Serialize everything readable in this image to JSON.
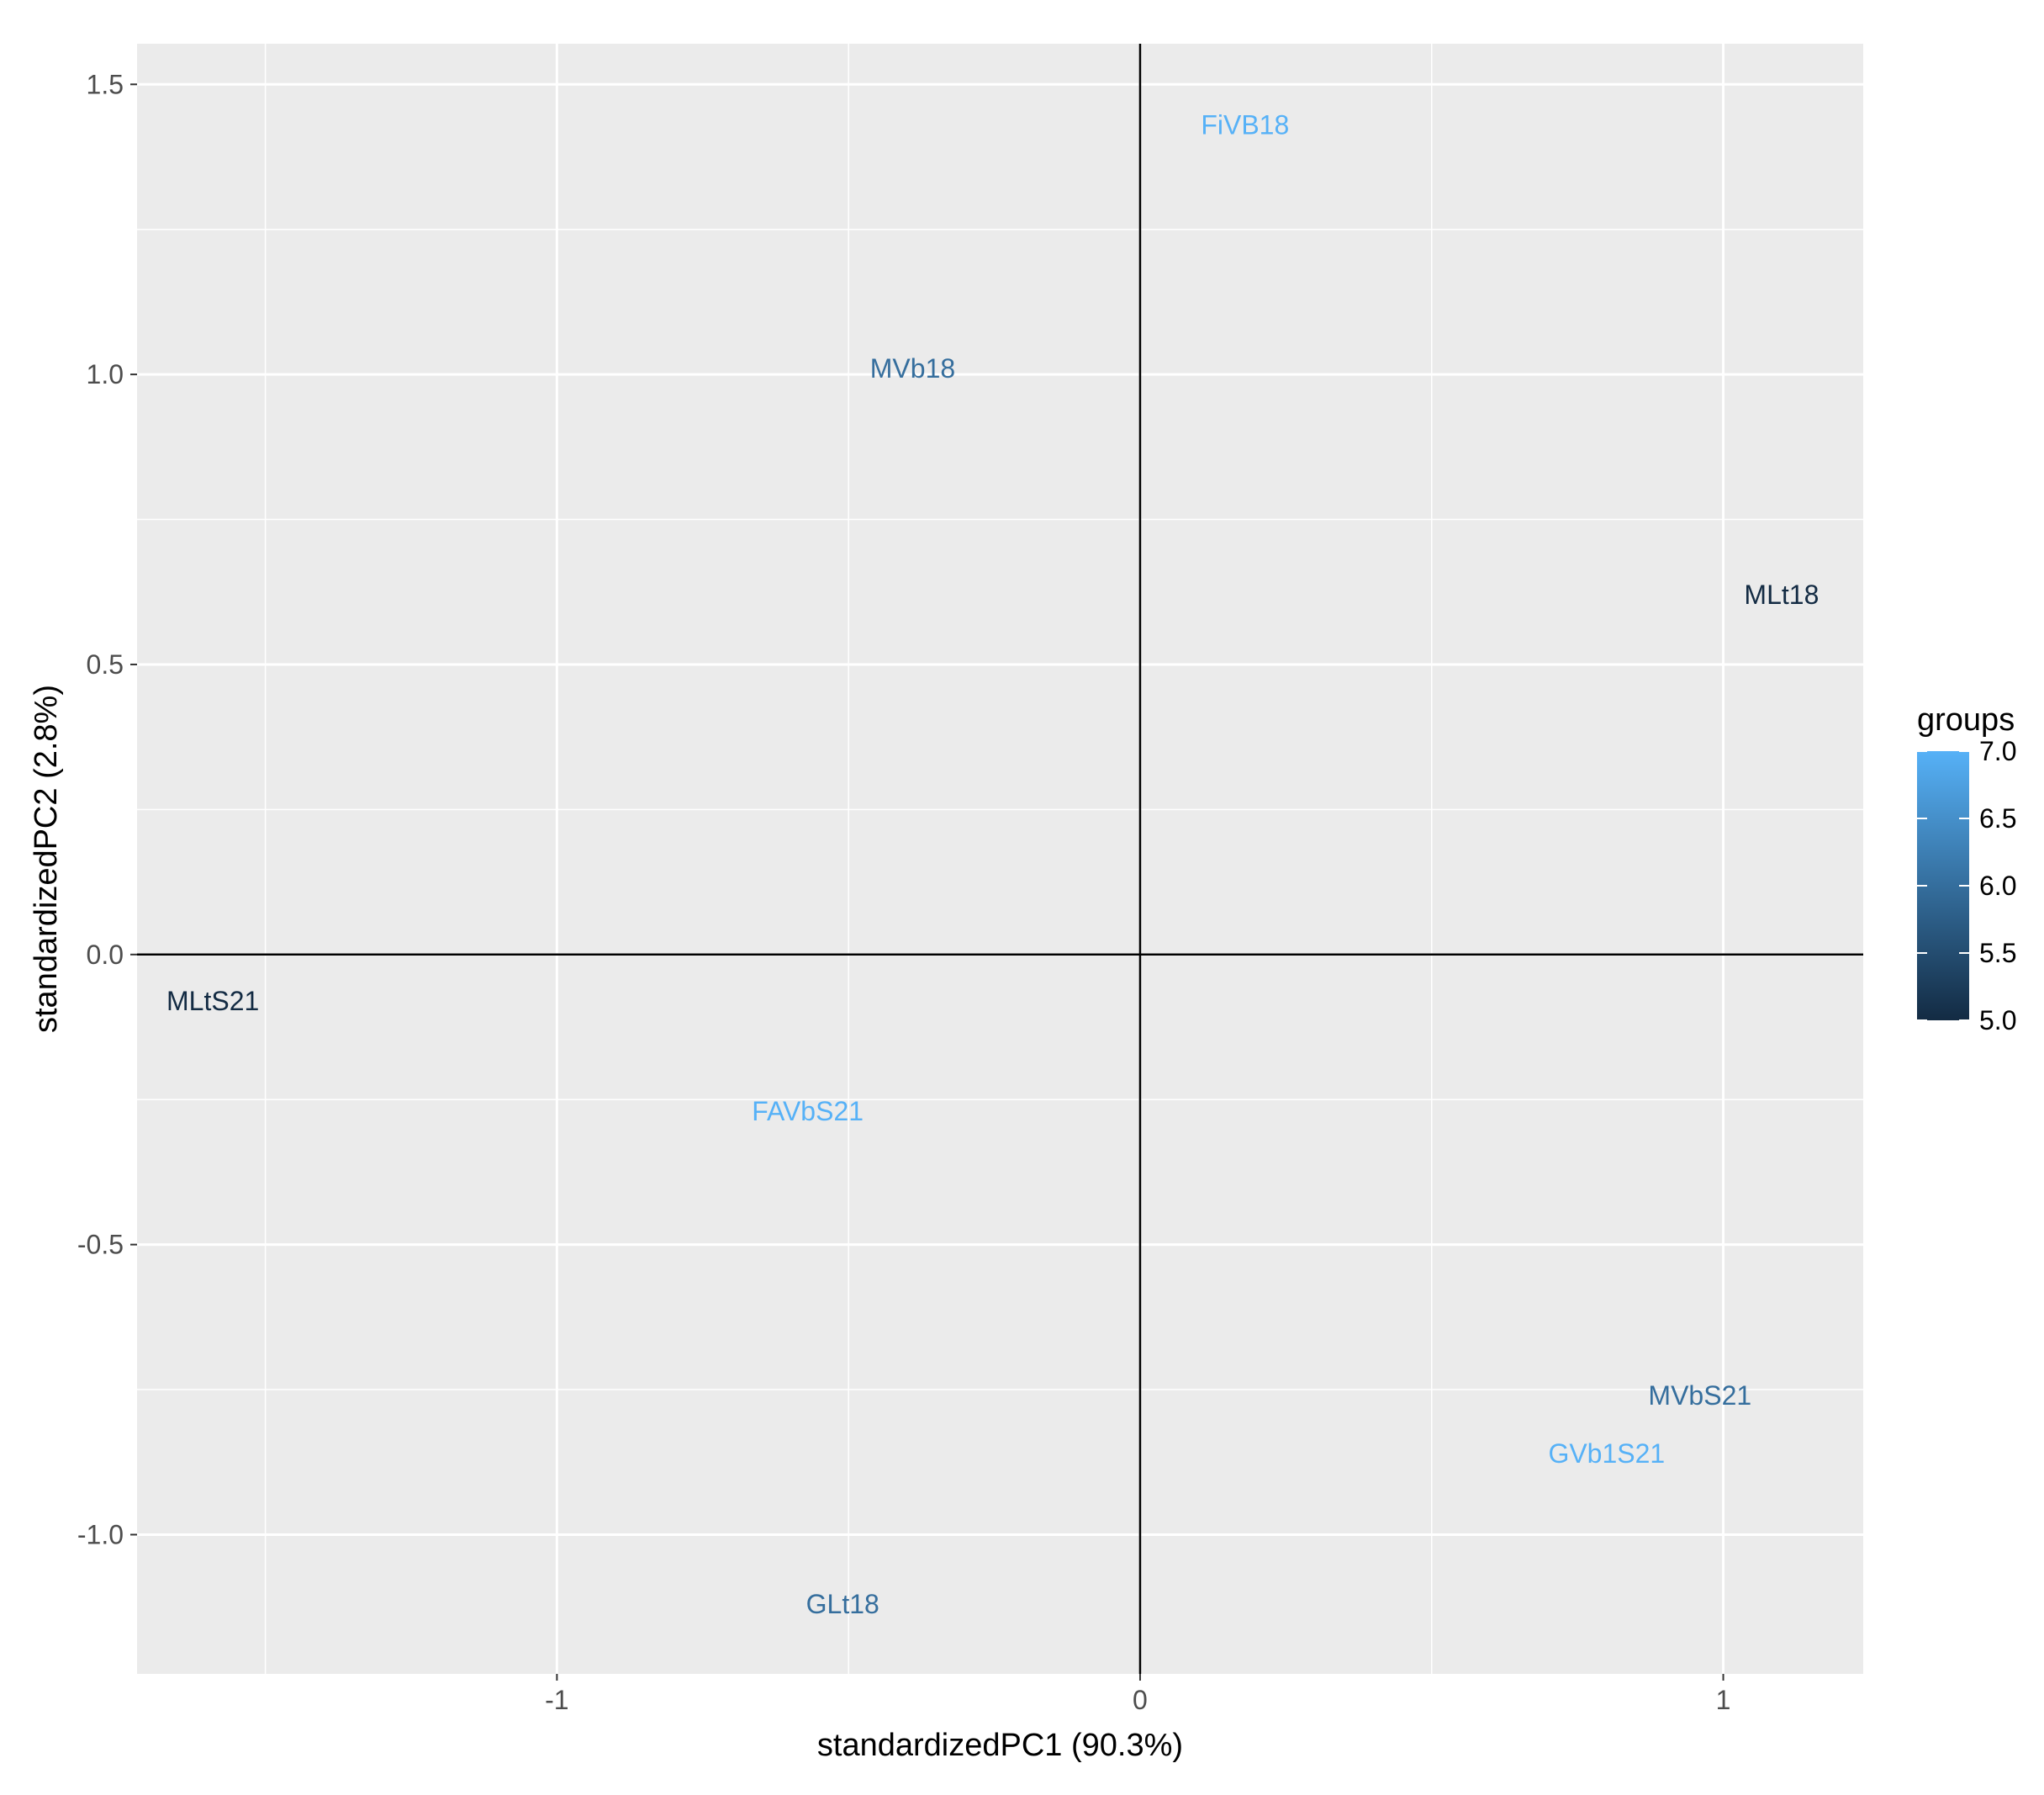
{
  "chart_data": {
    "type": "scatter",
    "title": "",
    "xlabel": "standardizedPC1 (90.3%)",
    "ylabel": "standardizedPC2 (2.8%)",
    "xlim": [
      -1.72,
      1.24
    ],
    "ylim": [
      -1.24,
      1.57
    ],
    "x_ticks": [
      -1,
      0,
      1
    ],
    "x_tick_labels": [
      "-1",
      "0",
      "1"
    ],
    "y_ticks": [
      -1.0,
      -0.5,
      0.0,
      0.5,
      1.0,
      1.5
    ],
    "y_tick_labels": [
      "-1.0",
      "-0.5",
      "0.0",
      "0.5",
      "1.0",
      "1.5"
    ],
    "grid": true,
    "reference_lines": {
      "x": 0,
      "y": 0
    },
    "points": [
      {
        "label": "FiVB18",
        "x": 0.18,
        "y": 1.43,
        "group": 7.0
      },
      {
        "label": "MVb18",
        "x": -0.39,
        "y": 1.01,
        "group": 6.0
      },
      {
        "label": "MLt18",
        "x": 1.1,
        "y": 0.62,
        "group": 5.0
      },
      {
        "label": "MLtS21",
        "x": -1.59,
        "y": -0.08,
        "group": 5.0
      },
      {
        "label": "FAVbS21",
        "x": -0.57,
        "y": -0.27,
        "group": 7.0
      },
      {
        "label": "MVbS21",
        "x": 0.96,
        "y": -0.76,
        "group": 6.0
      },
      {
        "label": "GVb1S21",
        "x": 0.8,
        "y": -0.86,
        "group": 7.0
      },
      {
        "label": "GLt18",
        "x": -0.51,
        "y": -1.12,
        "group": 6.0
      }
    ],
    "legend": {
      "title": "groups",
      "placement": "right",
      "type": "continuous",
      "range": [
        5.0,
        7.0
      ],
      "ticks": [
        5.0,
        5.5,
        6.0,
        6.5,
        7.0
      ],
      "tick_labels": [
        "5.0",
        "5.5",
        "6.0",
        "6.5",
        "7.0"
      ],
      "color_low": "#132b43",
      "color_high": "#56b1f7"
    },
    "colors": {
      "panel_background": "#ebebeb",
      "grid_line": "#ffffff",
      "reference_line": "#000000"
    }
  }
}
